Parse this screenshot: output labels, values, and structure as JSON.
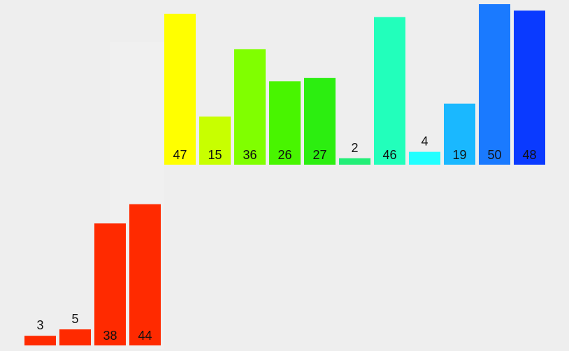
{
  "rows": [
    {
      "values": [
        47,
        15,
        36,
        26,
        27,
        2,
        46,
        4,
        19,
        50,
        48
      ],
      "colors": [
        "#ffff00",
        "#c8ff00",
        "#80ff00",
        "#48f500",
        "#2cee10",
        "#22ee77",
        "#22ffbb",
        "#22ffff",
        "#1ab8ff",
        "#1a7aff",
        "#0a3aff"
      ]
    },
    {
      "values": [
        3,
        5,
        38,
        44
      ],
      "colors": [
        "#ff2a00",
        "#ff2a00",
        "#ff2a00",
        "#ff2a00"
      ]
    }
  ]
}
